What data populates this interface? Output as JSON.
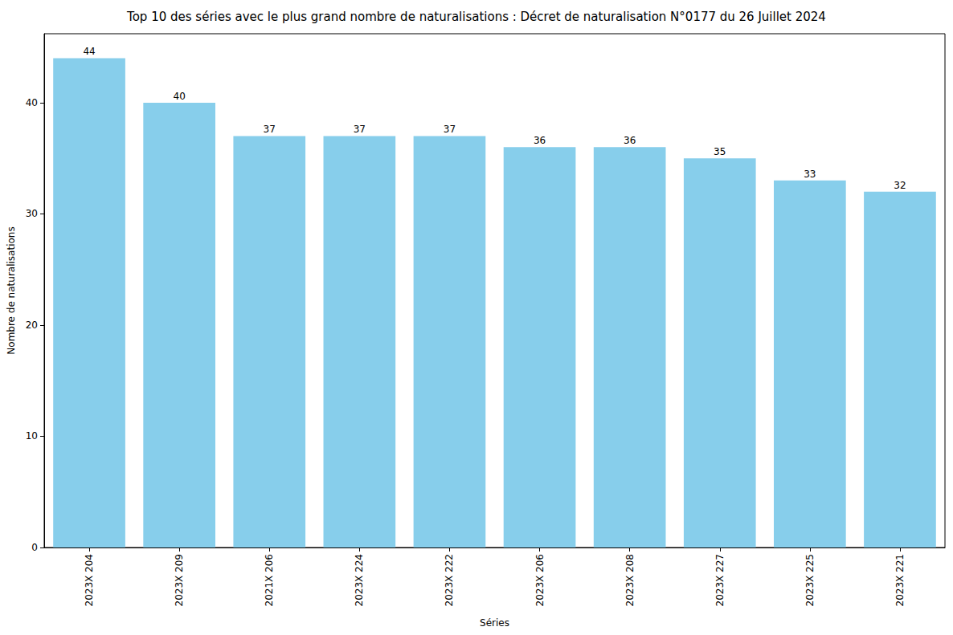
{
  "chart_data": {
    "type": "bar",
    "title": "Top 10 des séries avec le plus grand nombre de naturalisations : Décret de naturalisation N°0177 du 26 Juillet 2024",
    "x_label": "Séries",
    "y_label": "Nombre de naturalisations",
    "categories": [
      "2023X 204",
      "2023X 209",
      "2021X 206",
      "2023X 224",
      "2023X 222",
      "2023X 206",
      "2023X 208",
      "2023X 227",
      "2023X 225",
      "2023X 221"
    ],
    "values": [
      44,
      40,
      37,
      37,
      37,
      36,
      36,
      35,
      33,
      32
    ],
    "color": "#87ceeb",
    "ylim": [
      0,
      46.2
    ],
    "yticks": [
      0,
      10,
      20,
      30,
      40
    ],
    "grid": false,
    "data_labels": true
  }
}
